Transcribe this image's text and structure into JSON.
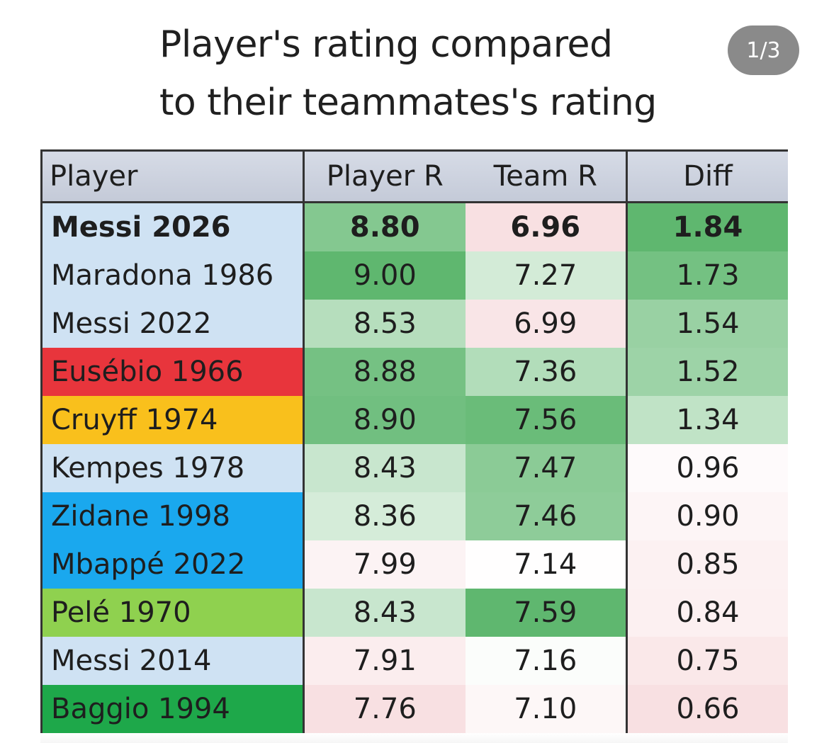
{
  "title_lines": [
    "Player's rating compared",
    "to their teammates's rating"
  ],
  "page_indicator": "1/3",
  "colors": {
    "default_name_bg": "#cfe2f3",
    "high_green": "#5fb76f",
    "low_pink": "#f6dcdc",
    "white": "#ffffff"
  },
  "chart_data": {
    "type": "table",
    "title": "Player's rating compared to their teammates's rating",
    "columns": [
      "Player",
      "Player R",
      "Team R",
      "Diff"
    ],
    "rows": [
      {
        "player": "Messi 2026",
        "player_r": "8.80",
        "team_r": "6.96",
        "diff": "1.84",
        "bold": true,
        "name_bg": "#cfe2f3"
      },
      {
        "player": "Maradona 1986",
        "player_r": "9.00",
        "team_r": "7.27",
        "diff": "1.73",
        "bold": false,
        "name_bg": "#cfe2f3"
      },
      {
        "player": "Messi 2022",
        "player_r": "8.53",
        "team_r": "6.99",
        "diff": "1.54",
        "bold": false,
        "name_bg": "#cfe2f3"
      },
      {
        "player": "Eusébio 1966",
        "player_r": "8.88",
        "team_r": "7.36",
        "diff": "1.52",
        "bold": false,
        "name_bg": "#e8353c"
      },
      {
        "player": "Cruyff 1974",
        "player_r": "8.90",
        "team_r": "7.56",
        "diff": "1.34",
        "bold": false,
        "name_bg": "#f9c01c"
      },
      {
        "player": "Kempes 1978",
        "player_r": "8.43",
        "team_r": "7.47",
        "diff": "0.96",
        "bold": false,
        "name_bg": "#cfe2f3"
      },
      {
        "player": "Zidane 1998",
        "player_r": "8.36",
        "team_r": "7.46",
        "diff": "0.90",
        "bold": false,
        "name_bg": "#1aa8ee"
      },
      {
        "player": "Mbappé 2022",
        "player_r": "7.99",
        "team_r": "7.14",
        "diff": "0.85",
        "bold": false,
        "name_bg": "#1aa8ee"
      },
      {
        "player": "Pelé 1970",
        "player_r": "8.43",
        "team_r": "7.59",
        "diff": "0.84",
        "bold": false,
        "name_bg": "#8fd14f"
      },
      {
        "player": "Messi 2014",
        "player_r": "7.91",
        "team_r": "7.16",
        "diff": "0.75",
        "bold": false,
        "name_bg": "#cfe2f3"
      },
      {
        "player": "Baggio 1994",
        "player_r": "7.76",
        "team_r": "7.10",
        "diff": "0.66",
        "bold": false,
        "name_bg": "#1ea84a"
      }
    ]
  }
}
